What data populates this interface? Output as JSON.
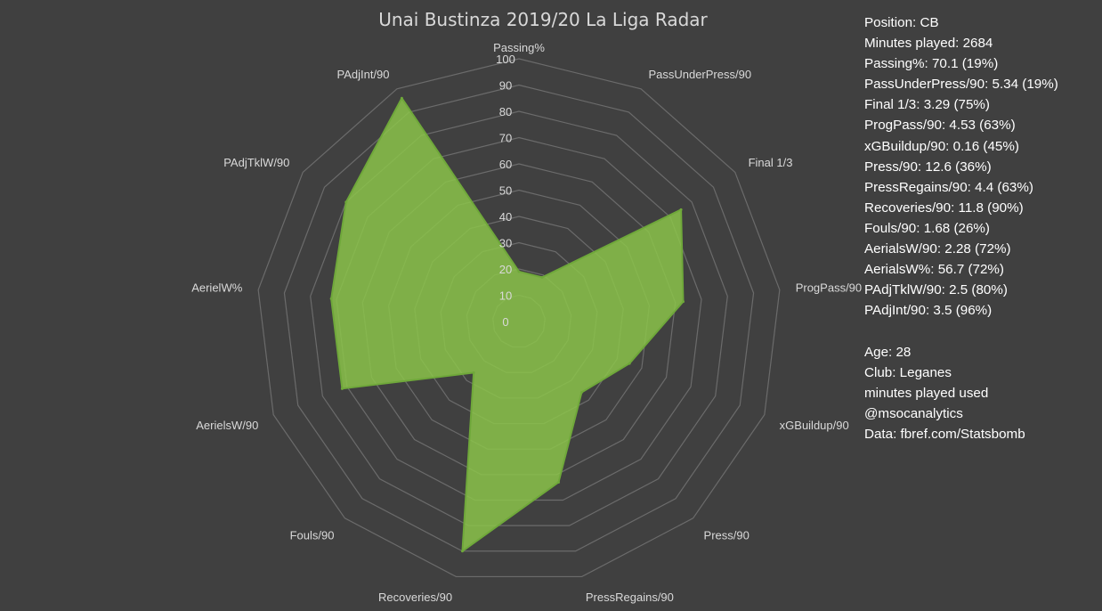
{
  "chart_data": {
    "type": "radar",
    "title": "Unai Bustinza 2019/20 La Liga Radar",
    "r_range": [
      0,
      100
    ],
    "r_ticks": [
      0,
      10,
      20,
      30,
      40,
      50,
      60,
      70,
      80,
      90,
      100
    ],
    "grid": true,
    "axes": [
      "Passing%",
      "PassUnderPress/90",
      "Final 1/3",
      "ProgPass/90",
      "xGBuildup/90",
      "Press/90",
      "PressRegains/90",
      "Recoveries/90",
      "Fouls/90",
      "AerielsW/90",
      "AerielW%",
      "PAdjTklW/90",
      "PAdjInt/90"
    ],
    "series": [
      {
        "values": [
          19,
          19,
          75,
          63,
          45,
          36,
          63,
          90,
          26,
          72,
          72,
          80,
          96
        ]
      }
    ],
    "colors": {
      "fill": "#8bc34a",
      "stroke": "#6fa83a",
      "grid": "#6b6b6b",
      "background": "#404040"
    }
  },
  "info": {
    "stats_lines": [
      "Position: CB",
      "Minutes played: 2684",
      "Passing%: 70.1 (19%)",
      "PassUnderPress/90: 5.34 (19%)",
      "Final 1/3: 3.29 (75%)",
      "ProgPass/90: 4.53 (63%)",
      "xGBuildup/90: 0.16 (45%)",
      "Press/90: 12.6 (36%)",
      "PressRegains/90: 4.4 (63%)",
      "Recoveries/90: 11.8 (90%)",
      "Fouls/90: 1.68 (26%)",
      "AerialsW/90: 2.28 (72%)",
      "AerialsW%: 56.7 (72%)",
      "PAdjTklW/90: 2.5 (80%)",
      "PAdjInt/90: 3.5 (96%)"
    ],
    "meta_lines": [
      "Age: 28",
      "Club: Leganes",
      "minutes played used",
      "@msocanalytics",
      "Data: fbref.com/Statsbomb"
    ]
  }
}
